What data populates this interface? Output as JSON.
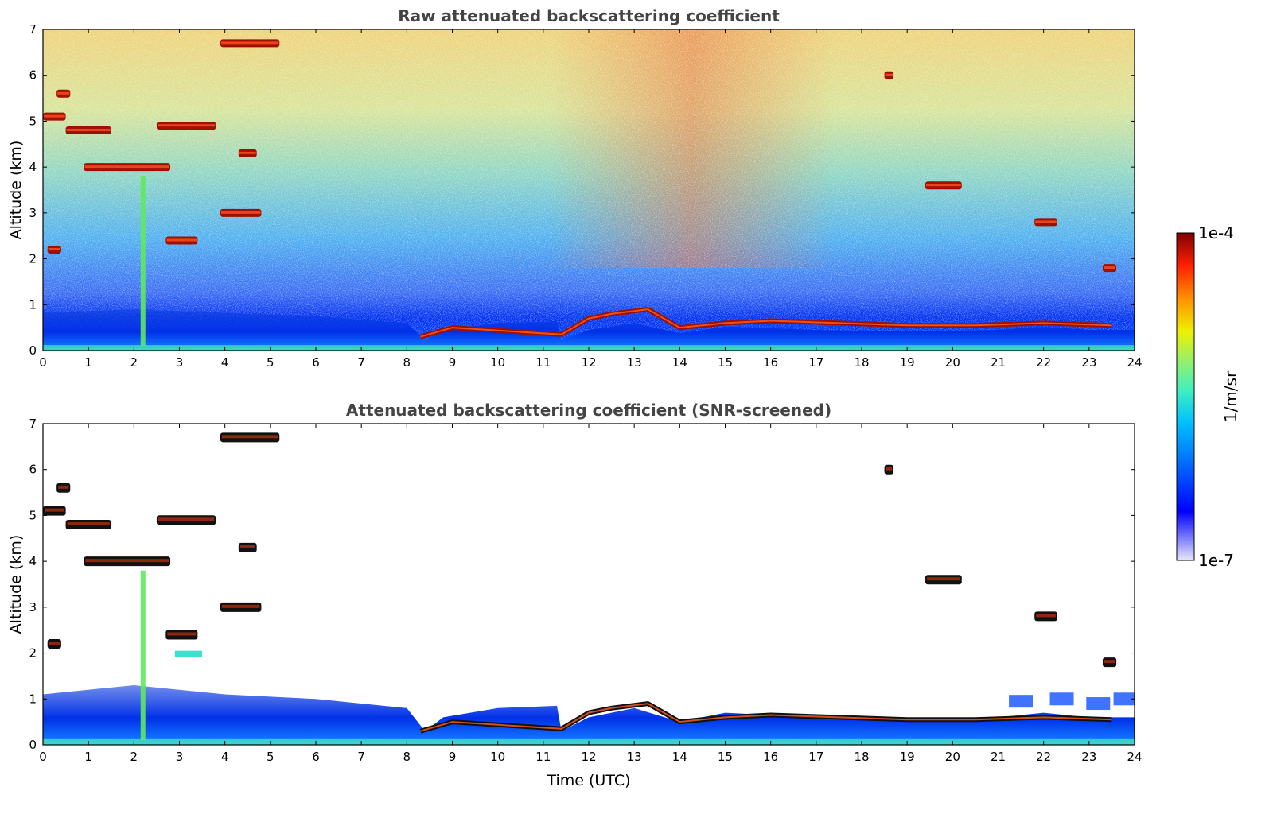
{
  "chart_data": [
    {
      "type": "heatmap",
      "title": "Raw attenuated backscattering coefficient",
      "xlabel": "",
      "ylabel": "Altitude (km)",
      "xlim": [
        0,
        24
      ],
      "ylim": [
        0,
        7
      ],
      "xticks": [
        "0",
        "1",
        "2",
        "3",
        "4",
        "5",
        "6",
        "7",
        "8",
        "9",
        "10",
        "11",
        "12",
        "13",
        "14",
        "15",
        "16",
        "17",
        "18",
        "19",
        "20",
        "21",
        "22",
        "23",
        "24"
      ],
      "yticks": [
        "0",
        "1",
        "2",
        "3",
        "4",
        "5",
        "6",
        "7"
      ],
      "screened": false,
      "cloud_layers": [
        {
          "t0": 0.0,
          "t1": 0.5,
          "alt": 5.1
        },
        {
          "t0": 0.3,
          "t1": 0.6,
          "alt": 5.6
        },
        {
          "t0": 0.5,
          "t1": 1.5,
          "alt": 4.8
        },
        {
          "t0": 0.9,
          "t1": 2.8,
          "alt": 4.0
        },
        {
          "t0": 2.5,
          "t1": 3.8,
          "alt": 4.9
        },
        {
          "t0": 3.9,
          "t1": 5.2,
          "alt": 6.7
        },
        {
          "t0": 4.3,
          "t1": 4.7,
          "alt": 4.3
        },
        {
          "t0": 0.1,
          "t1": 0.4,
          "alt": 2.2
        },
        {
          "t0": 2.7,
          "t1": 3.4,
          "alt": 2.4
        },
        {
          "t0": 3.9,
          "t1": 4.8,
          "alt": 3.0
        },
        {
          "t0": 18.5,
          "t1": 18.7,
          "alt": 6.0
        },
        {
          "t0": 19.4,
          "t1": 20.2,
          "alt": 3.6
        },
        {
          "t0": 21.8,
          "t1": 22.3,
          "alt": 2.8
        },
        {
          "t0": 23.3,
          "t1": 23.6,
          "alt": 1.8
        }
      ],
      "boundary_layer": [
        {
          "t": 8.3,
          "alt": 0.3
        },
        {
          "t": 9.0,
          "alt": 0.5
        },
        {
          "t": 11.4,
          "alt": 0.35
        },
        {
          "t": 12.0,
          "alt": 0.7
        },
        {
          "t": 12.5,
          "alt": 0.8
        },
        {
          "t": 13.3,
          "alt": 0.9
        },
        {
          "t": 14.0,
          "alt": 0.5
        },
        {
          "t": 15.0,
          "alt": 0.6
        },
        {
          "t": 16.0,
          "alt": 0.65
        },
        {
          "t": 17.5,
          "alt": 0.6
        },
        {
          "t": 19.0,
          "alt": 0.55
        },
        {
          "t": 20.5,
          "alt": 0.55
        },
        {
          "t": 22.0,
          "alt": 0.6
        },
        {
          "t": 23.5,
          "alt": 0.55
        }
      ]
    },
    {
      "type": "heatmap",
      "title": "Attenuated backscattering coefficient (SNR-screened)",
      "xlabel": "Time (UTC)",
      "ylabel": "Altitude (km)",
      "xlim": [
        0,
        24
      ],
      "ylim": [
        0,
        7
      ],
      "xticks": [
        "0",
        "1",
        "2",
        "3",
        "4",
        "5",
        "6",
        "7",
        "8",
        "9",
        "10",
        "11",
        "12",
        "13",
        "14",
        "15",
        "16",
        "17",
        "18",
        "19",
        "20",
        "21",
        "22",
        "23",
        "24"
      ],
      "yticks": [
        "0",
        "1",
        "2",
        "3",
        "4",
        "5",
        "6",
        "7"
      ],
      "screened": true
    }
  ],
  "colorbar": {
    "label": "1/m/sr",
    "max_label": "1e-4",
    "min_label": "1e-7",
    "scale": "log",
    "colors": [
      "#e8e8f8",
      "#6a6aff",
      "#0000ff",
      "#0060ff",
      "#00c0ff",
      "#40f0c0",
      "#a0f060",
      "#f0f000",
      "#ff9000",
      "#ff2000",
      "#800000"
    ]
  }
}
